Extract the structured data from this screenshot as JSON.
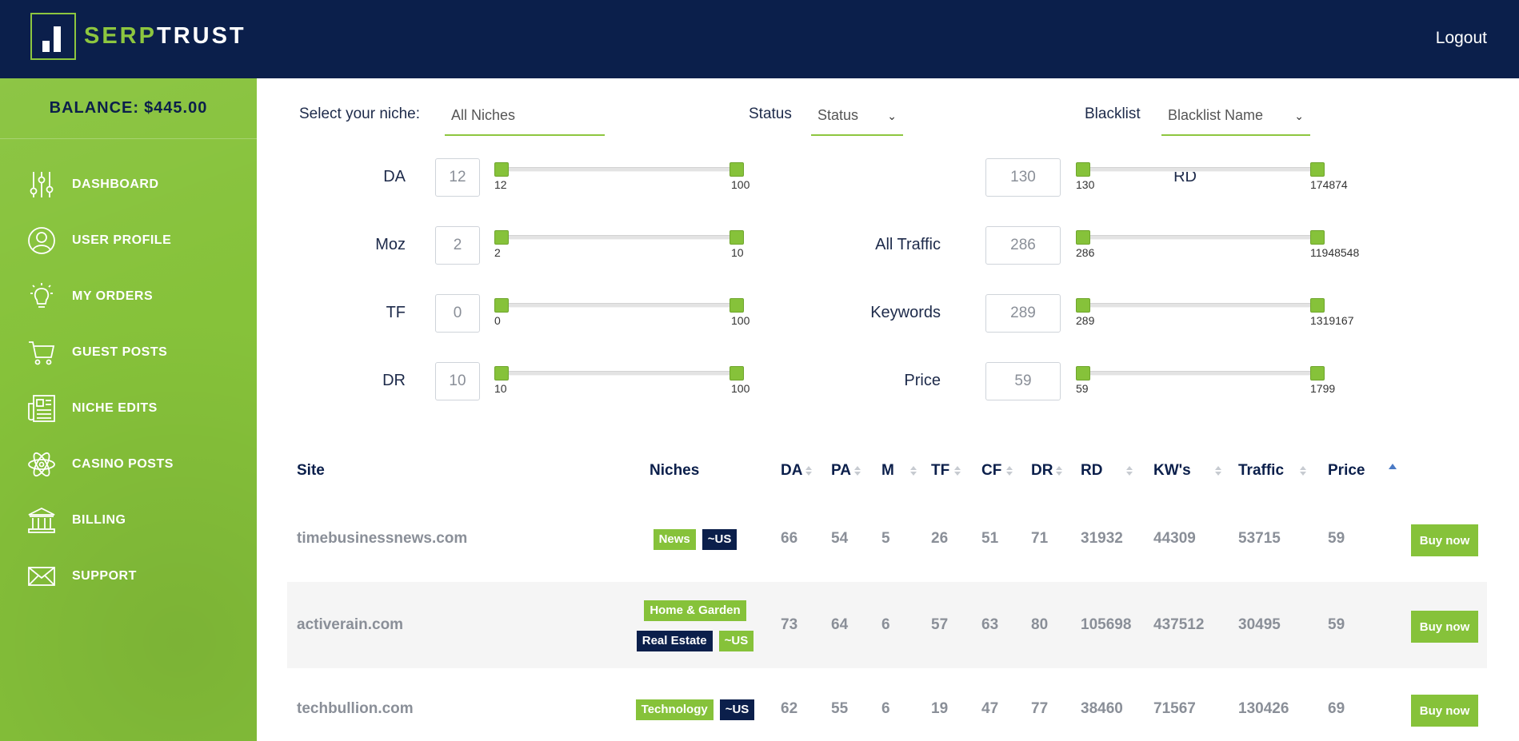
{
  "header": {
    "logo_serp": "SERP",
    "logo_trust": "TRUST",
    "logout_label": "Logout"
  },
  "sidebar": {
    "balance_label": "BALANCE:",
    "balance_value": "$445.00",
    "items": [
      {
        "label": "DASHBOARD",
        "icon": "sliders-icon"
      },
      {
        "label": "USER PROFILE",
        "icon": "user-circle-icon"
      },
      {
        "label": "MY ORDERS",
        "icon": "lightbulb-icon"
      },
      {
        "label": "GUEST POSTS",
        "icon": "cart-icon"
      },
      {
        "label": "NICHE EDITS",
        "icon": "newspaper-icon"
      },
      {
        "label": "CASINO POSTS",
        "icon": "atom-icon"
      },
      {
        "label": "BILLING",
        "icon": "bank-icon"
      },
      {
        "label": "SUPPORT",
        "icon": "envelope-icon"
      }
    ]
  },
  "filters": {
    "niche_label": "Select your niche:",
    "niche_value": "All Niches",
    "status_label": "Status",
    "status_value": "Status",
    "blacklist_label": "Blacklist",
    "blacklist_value": "Blacklist Name",
    "ranges": {
      "da": {
        "label": "DA",
        "input": "12",
        "min": "12",
        "max": "100"
      },
      "moz": {
        "label": "Moz",
        "input": "2",
        "min": "2",
        "max": "10"
      },
      "tf": {
        "label": "TF",
        "input": "0",
        "min": "0",
        "max": "100"
      },
      "dr": {
        "label": "DR",
        "input": "10",
        "min": "10",
        "max": "100"
      },
      "rd": {
        "label": "RD",
        "input": "130",
        "min": "130",
        "max": "174874"
      },
      "traffic": {
        "label": "All Traffic",
        "input": "286",
        "min": "286",
        "max": "11948548"
      },
      "keywords": {
        "label": "Keywords",
        "input": "289",
        "min": "289",
        "max": "1319167"
      },
      "price": {
        "label": "Price",
        "input": "59",
        "min": "59",
        "max": "1799"
      }
    }
  },
  "table": {
    "headers": {
      "site": "Site",
      "niches": "Niches",
      "da": "DA",
      "pa": "PA",
      "m": "M",
      "tf": "TF",
      "cf": "CF",
      "dr": "DR",
      "rd": "RD",
      "kws": "KW's",
      "traffic": "Traffic",
      "price": "Price"
    },
    "buy_label": "Buy now",
    "rows": [
      {
        "site": "timebusinessnews.com",
        "tag1": "News",
        "tag2": "~US",
        "da": "66",
        "pa": "54",
        "m": "5",
        "tf": "26",
        "cf": "51",
        "dr": "71",
        "rd": "31932",
        "kws": "44309",
        "traffic": "53715",
        "price": "59"
      },
      {
        "site": "activerain.com",
        "tag0": "Home & Garden",
        "tag1": "Real Estate",
        "tag2": "~US",
        "da": "73",
        "pa": "64",
        "m": "6",
        "tf": "57",
        "cf": "63",
        "dr": "80",
        "rd": "105698",
        "kws": "437512",
        "traffic": "30495",
        "price": "59"
      },
      {
        "site": "techbullion.com",
        "tag1": "Technology",
        "tag2": "~US",
        "da": "62",
        "pa": "55",
        "m": "6",
        "tf": "19",
        "cf": "47",
        "dr": "77",
        "rd": "38460",
        "kws": "71567",
        "traffic": "130426",
        "price": "69"
      }
    ]
  }
}
